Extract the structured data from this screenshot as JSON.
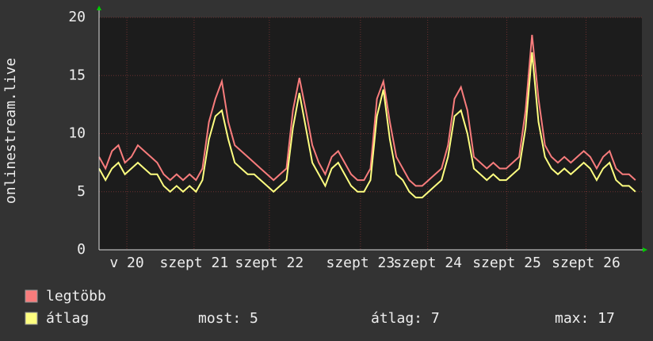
{
  "chart_data": {
    "type": "line",
    "y_label": "onlinestream.live",
    "x": [
      0,
      2,
      4,
      6,
      8,
      10,
      12,
      14,
      16,
      18,
      20,
      22,
      24,
      26,
      28,
      30,
      32,
      34,
      36,
      38,
      40,
      42,
      44,
      46,
      48,
      50,
      52,
      54,
      56,
      58,
      60,
      62,
      64,
      66,
      68,
      70,
      72,
      74,
      76,
      78,
      80,
      82,
      84,
      86,
      88,
      90,
      92,
      94,
      96,
      98,
      100,
      102,
      104,
      106,
      108,
      110,
      112,
      114,
      116,
      118,
      120,
      122,
      124,
      126,
      128,
      130,
      132,
      134,
      136,
      138,
      140,
      142,
      144,
      146,
      148,
      150,
      152,
      154,
      156,
      158,
      160,
      162,
      164,
      166
    ],
    "series": [
      {
        "name": "legtöbb",
        "color": "#f87c7c",
        "values": [
          8,
          7,
          8.5,
          9,
          7.5,
          8,
          9,
          8.5,
          8,
          7.5,
          6.5,
          6,
          6.5,
          6,
          6.5,
          6,
          7,
          11,
          13,
          14.5,
          11,
          9,
          8.5,
          8,
          7.5,
          7,
          6.5,
          6,
          6.5,
          7,
          12,
          14.8,
          12,
          9,
          7.5,
          6.5,
          8,
          8.5,
          7.5,
          6.5,
          6,
          6,
          7,
          13,
          14.5,
          11,
          8,
          7,
          6,
          5.5,
          5.5,
          6,
          6.5,
          7,
          9,
          13,
          14,
          12,
          8,
          7.5,
          7,
          7.5,
          7,
          7,
          7.5,
          8,
          12,
          18.5,
          13,
          9,
          8,
          7.5,
          8,
          7.5,
          8,
          8.5,
          8,
          7,
          8,
          8.5,
          7,
          6.5,
          6.5,
          6
        ]
      },
      {
        "name": "átlag",
        "color": "#ffff80",
        "values": [
          7,
          6,
          7,
          7.5,
          6.5,
          7,
          7.5,
          7,
          6.5,
          6.5,
          5.5,
          5,
          5.5,
          5,
          5.5,
          5,
          6,
          9.5,
          11.5,
          12,
          9.5,
          7.5,
          7,
          6.5,
          6.5,
          6,
          5.5,
          5,
          5.5,
          6,
          10.5,
          13.5,
          10.5,
          7.5,
          6.5,
          5.5,
          7,
          7.5,
          6.5,
          5.5,
          5,
          5,
          6,
          11.5,
          13.8,
          9.5,
          6.5,
          6,
          5,
          4.5,
          4.5,
          5,
          5.5,
          6,
          8,
          11.5,
          12,
          10,
          7,
          6.5,
          6,
          6.5,
          6,
          6,
          6.5,
          7,
          10.5,
          17,
          11,
          8,
          7,
          6.5,
          7,
          6.5,
          7,
          7.5,
          7,
          6,
          7,
          7.5,
          6,
          5.5,
          5.5,
          5
        ]
      }
    ],
    "xlim": [
      0,
      168
    ],
    "xticks": [
      {
        "value": 8.6,
        "label": "v 20"
      },
      {
        "value": 29.4,
        "label": "szept 21"
      },
      {
        "value": 52.7,
        "label": "szept 22"
      },
      {
        "value": 80.9,
        "label": "szept 23"
      },
      {
        "value": 101.7,
        "label": "szept 24"
      },
      {
        "value": 126.2,
        "label": "szept 25"
      },
      {
        "value": 150.7,
        "label": "szept 26"
      }
    ],
    "ylim": [
      0,
      20
    ],
    "yticks": [
      0,
      5,
      10,
      15,
      20
    ],
    "grid": true,
    "stats": [
      "most: 5",
      "átlag: 7",
      "max: 17"
    ]
  }
}
